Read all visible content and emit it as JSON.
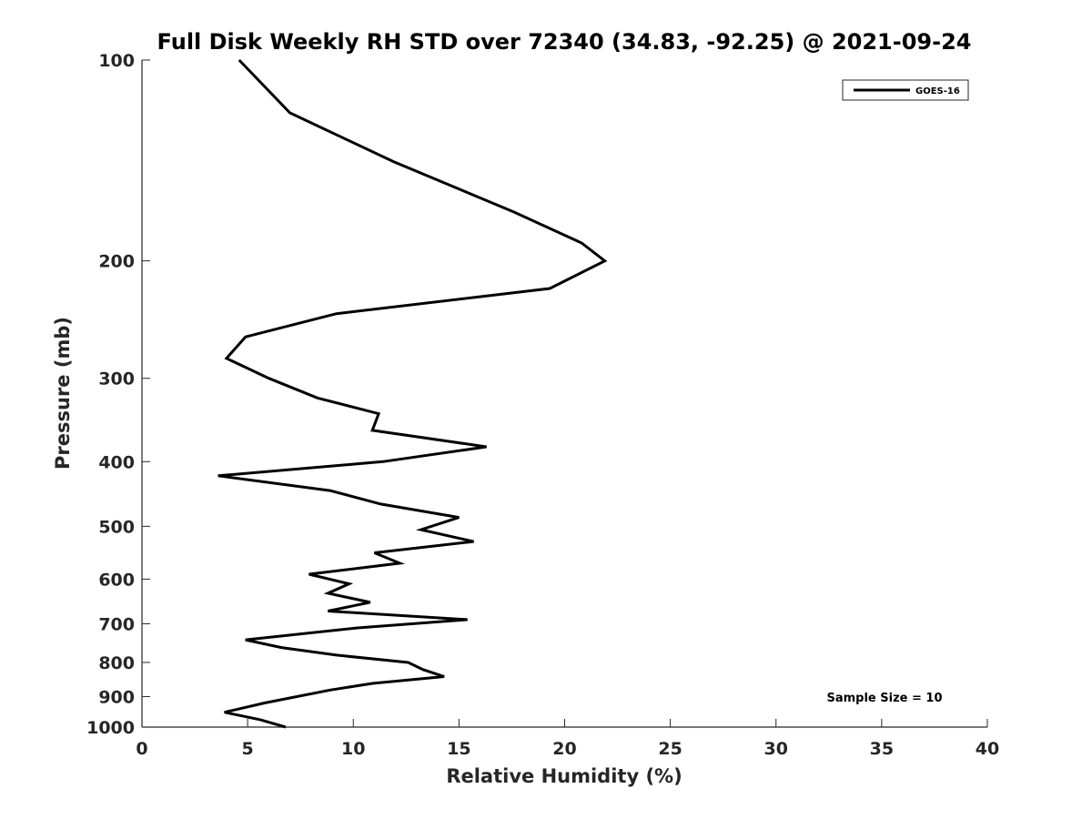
{
  "chart_data": {
    "type": "line",
    "title": "Full Disk Weekly RH STD over 72340 (34.83, -92.25) @ 2021-09-24",
    "xlabel": "Relative Humidity (%)",
    "ylabel": "Pressure (mb)",
    "xlim": [
      0,
      40
    ],
    "ylim": [
      1000,
      100
    ],
    "yscale": "log",
    "xticks": [
      0,
      5,
      10,
      15,
      20,
      25,
      30,
      35,
      40
    ],
    "yticks": [
      100,
      200,
      300,
      400,
      500,
      600,
      700,
      800,
      900,
      1000
    ],
    "grid": false,
    "legend_position": "top-right",
    "series": [
      {
        "name": "GOES-16",
        "color": "#000000",
        "points": [
          [
            4.6,
            100
          ],
          [
            7.0,
            120
          ],
          [
            11.9,
            142
          ],
          [
            17.6,
            169
          ],
          [
            20.8,
            188
          ],
          [
            21.9,
            200
          ],
          [
            19.3,
            220
          ],
          [
            9.2,
            240
          ],
          [
            4.9,
            260
          ],
          [
            4.0,
            280
          ],
          [
            6.0,
            300
          ],
          [
            8.3,
            321
          ],
          [
            11.2,
            339
          ],
          [
            10.9,
            359
          ],
          [
            16.3,
            380
          ],
          [
            11.4,
            400
          ],
          [
            3.6,
            420
          ],
          [
            8.9,
            442
          ],
          [
            11.3,
            463
          ],
          [
            15.0,
            485
          ],
          [
            13.2,
            506
          ],
          [
            15.7,
            527
          ],
          [
            11.0,
            548
          ],
          [
            12.2,
            568
          ],
          [
            7.9,
            590
          ],
          [
            9.8,
            610
          ],
          [
            8.8,
            630
          ],
          [
            10.8,
            650
          ],
          [
            8.8,
            670
          ],
          [
            15.4,
            690
          ],
          [
            10.2,
            710
          ],
          [
            4.9,
            740
          ],
          [
            6.6,
            760
          ],
          [
            9.2,
            780
          ],
          [
            12.6,
            800
          ],
          [
            13.3,
            820
          ],
          [
            14.3,
            840
          ],
          [
            10.9,
            860
          ],
          [
            8.9,
            880
          ],
          [
            5.8,
            920
          ],
          [
            3.9,
            950
          ],
          [
            5.6,
            975
          ],
          [
            6.8,
            1000
          ]
        ]
      }
    ],
    "annotations": [
      "Sample Size = 10"
    ]
  }
}
